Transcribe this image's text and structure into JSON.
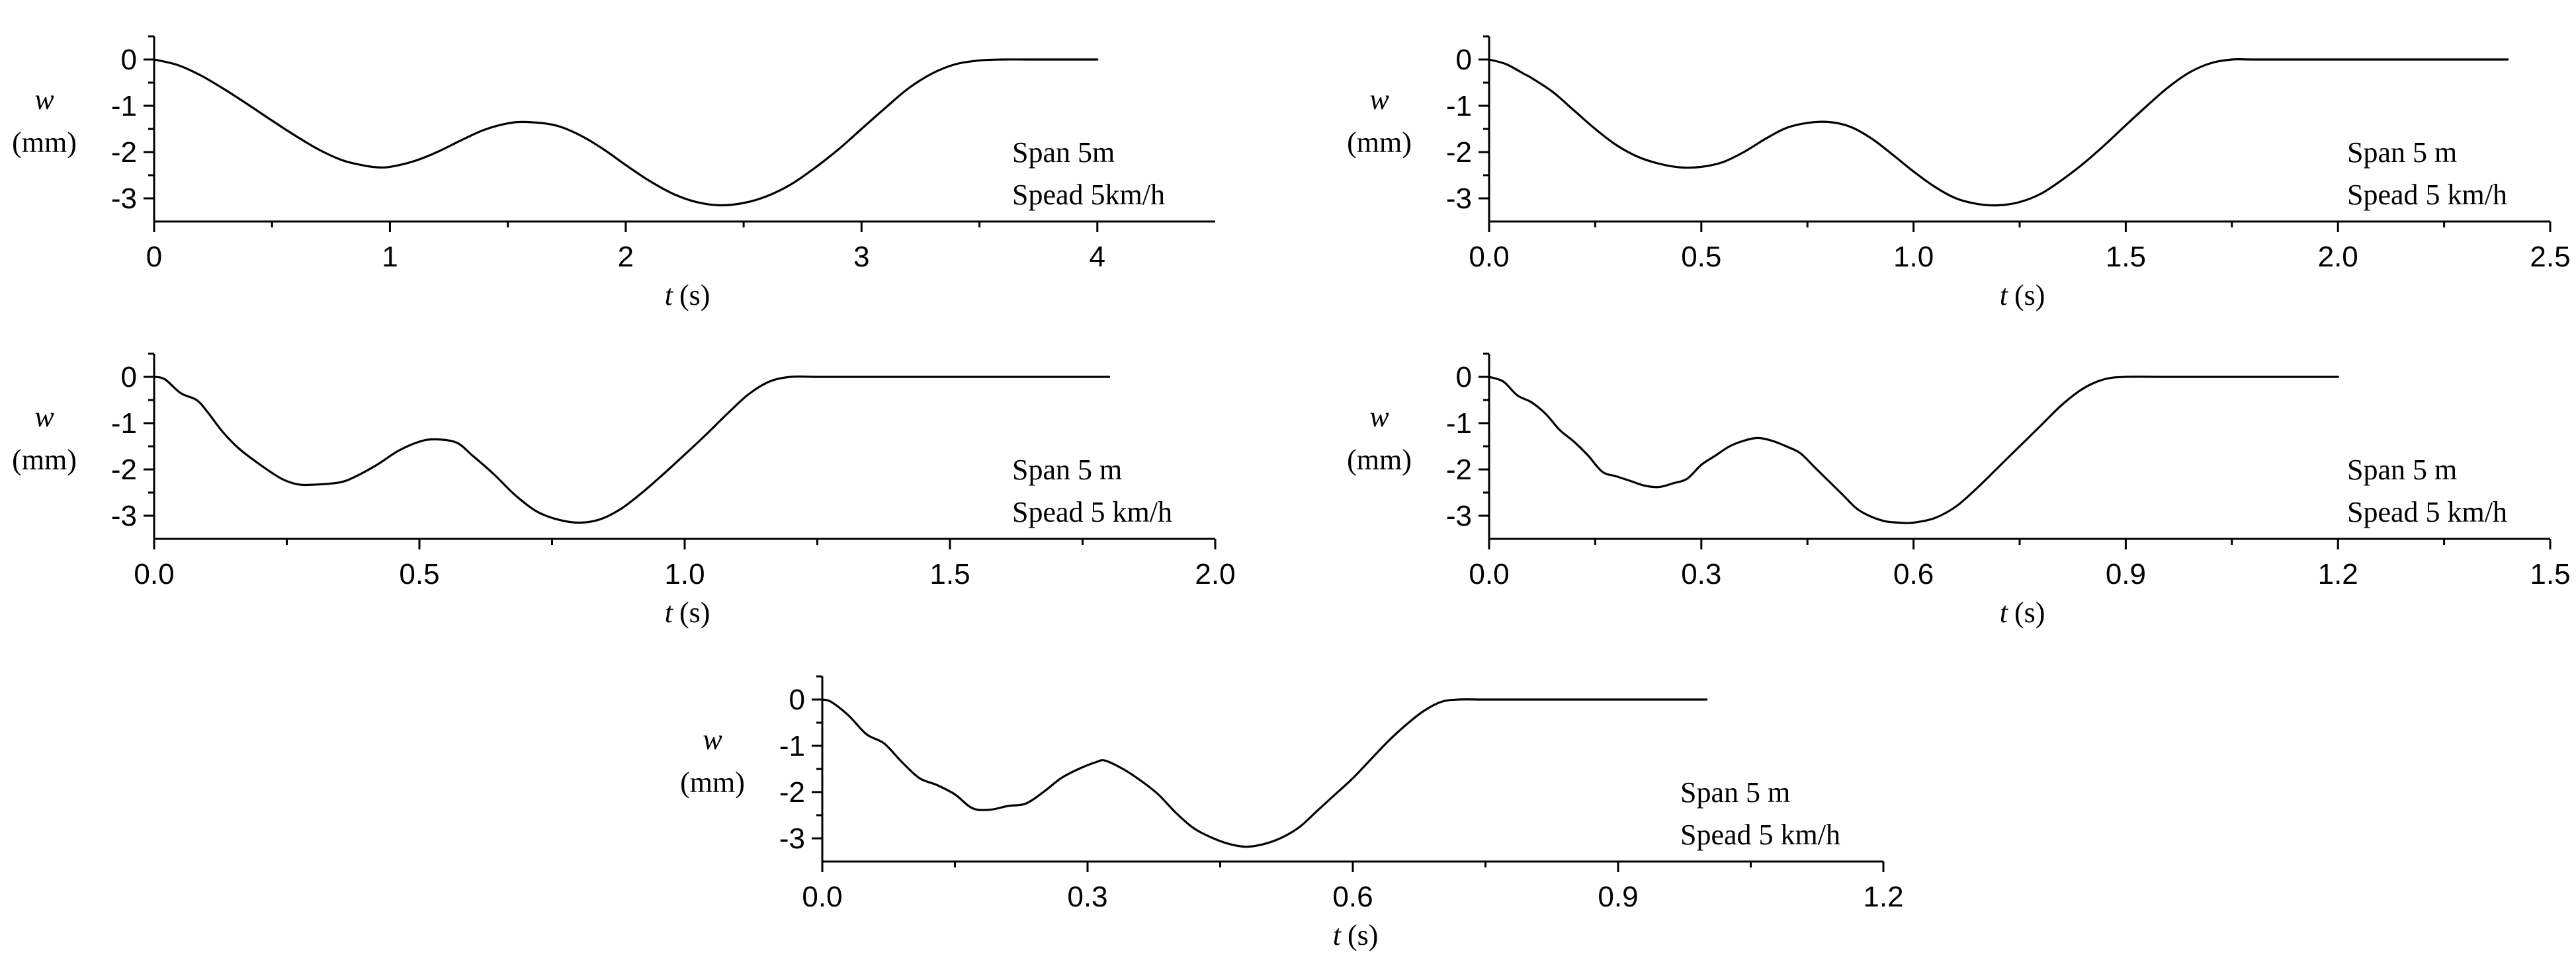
{
  "chart_data": [
    {
      "type": "line",
      "panel": "top-left",
      "xlabel_var": "t",
      "xlabel_unit": "(s)",
      "ylabel_var": "w",
      "ylabel_unit": "(mm)",
      "xlim": [
        0,
        4.5
      ],
      "ylim": [
        -3.5,
        0.5
      ],
      "xticks": [
        0,
        1,
        2,
        3,
        4
      ],
      "xtick_labels": [
        "0",
        "1",
        "2",
        "3",
        "4"
      ],
      "yticks": [
        0,
        -1,
        -2,
        -3
      ],
      "ytick_labels": [
        "0",
        "-1",
        "-2",
        "-3"
      ],
      "annotation": [
        "Span 5m",
        "Spead 5km/h"
      ],
      "series": [
        {
          "name": "w",
          "x": [
            0,
            0.1,
            0.2,
            0.3,
            0.4,
            0.5,
            0.6,
            0.7,
            0.8,
            0.9,
            0.95,
            1.0,
            1.1,
            1.2,
            1.3,
            1.4,
            1.5,
            1.58,
            1.7,
            1.8,
            1.9,
            2.0,
            2.1,
            2.2,
            2.3,
            2.4,
            2.5,
            2.6,
            2.7,
            2.8,
            2.9,
            3.0,
            3.1,
            3.2,
            3.3,
            3.4,
            3.5,
            3.6,
            3.7,
            3.8,
            3.9,
            4.0
          ],
          "y": [
            0,
            -0.12,
            -0.35,
            -0.65,
            -0.98,
            -1.32,
            -1.65,
            -1.95,
            -2.18,
            -2.3,
            -2.33,
            -2.32,
            -2.2,
            -2.0,
            -1.75,
            -1.52,
            -1.38,
            -1.35,
            -1.42,
            -1.62,
            -1.92,
            -2.28,
            -2.62,
            -2.9,
            -3.08,
            -3.15,
            -3.1,
            -2.95,
            -2.7,
            -2.35,
            -1.95,
            -1.5,
            -1.05,
            -0.62,
            -0.3,
            -0.1,
            -0.02,
            0,
            0,
            0,
            0,
            0
          ]
        }
      ]
    },
    {
      "type": "line",
      "panel": "top-right",
      "xlabel_var": "t",
      "xlabel_unit": "(s)",
      "ylabel_var": "w",
      "ylabel_unit": "(mm)",
      "xlim": [
        0,
        2.5
      ],
      "ylim": [
        -3.5,
        0.5
      ],
      "xticks": [
        0,
        0.5,
        1.0,
        1.5,
        2.0,
        2.5
      ],
      "xtick_labels": [
        "0.0",
        "0.5",
        "1.0",
        "1.5",
        "2.0",
        "2.5"
      ],
      "yticks": [
        0,
        -1,
        -2,
        -3
      ],
      "ytick_labels": [
        "0",
        "-1",
        "-2",
        "-3"
      ],
      "annotation": [
        "Span 5 m",
        "Spead 5 km/h"
      ],
      "series": [
        {
          "name": "w",
          "x": [
            0,
            0.04,
            0.08,
            0.1,
            0.15,
            0.2,
            0.25,
            0.3,
            0.35,
            0.4,
            0.45,
            0.5,
            0.55,
            0.6,
            0.65,
            0.7,
            0.75,
            0.8,
            0.85,
            0.9,
            0.95,
            1.0,
            1.05,
            1.1,
            1.15,
            1.2,
            1.25,
            1.3,
            1.35,
            1.4,
            1.45,
            1.5,
            1.55,
            1.6,
            1.65,
            1.7,
            1.75,
            1.8,
            1.9,
            2.0,
            2.1,
            2.2,
            2.3,
            2.4
          ],
          "y": [
            0,
            -0.1,
            -0.3,
            -0.4,
            -0.7,
            -1.1,
            -1.5,
            -1.85,
            -2.1,
            -2.25,
            -2.33,
            -2.32,
            -2.22,
            -2.0,
            -1.72,
            -1.48,
            -1.37,
            -1.35,
            -1.45,
            -1.7,
            -2.05,
            -2.42,
            -2.75,
            -3.0,
            -3.12,
            -3.15,
            -3.08,
            -2.9,
            -2.6,
            -2.25,
            -1.85,
            -1.42,
            -1.0,
            -0.6,
            -0.28,
            -0.08,
            0,
            0,
            0,
            0,
            0,
            0,
            0,
            0
          ]
        }
      ]
    },
    {
      "type": "line",
      "panel": "middle-left",
      "xlabel_var": "t",
      "xlabel_unit": "(s)",
      "ylabel_var": "w",
      "ylabel_unit": "(mm)",
      "xlim": [
        0,
        2.0
      ],
      "ylim": [
        -3.5,
        0.5
      ],
      "xticks": [
        0,
        0.5,
        1.0,
        1.5,
        2.0
      ],
      "xtick_labels": [
        "0.0",
        "0.5",
        "1.0",
        "1.5",
        "2.0"
      ],
      "yticks": [
        0,
        -1,
        -2,
        -3
      ],
      "ytick_labels": [
        "0",
        "-1",
        "-2",
        "-3"
      ],
      "annotation": [
        "Span 5 m",
        "Spead 5 km/h"
      ],
      "series": [
        {
          "name": "w",
          "x": [
            0,
            0.02,
            0.05,
            0.08,
            0.1,
            0.13,
            0.16,
            0.2,
            0.24,
            0.27,
            0.3,
            0.35,
            0.38,
            0.42,
            0.46,
            0.5,
            0.53,
            0.57,
            0.6,
            0.64,
            0.68,
            0.72,
            0.76,
            0.8,
            0.84,
            0.88,
            0.92,
            0.96,
            1.0,
            1.04,
            1.08,
            1.12,
            1.16,
            1.2,
            1.25,
            1.3,
            1.4,
            1.5,
            1.6,
            1.7,
            1.8
          ],
          "y": [
            0,
            -0.05,
            -0.35,
            -0.5,
            -0.75,
            -1.2,
            -1.55,
            -1.9,
            -2.2,
            -2.32,
            -2.33,
            -2.28,
            -2.15,
            -1.9,
            -1.6,
            -1.4,
            -1.35,
            -1.42,
            -1.7,
            -2.1,
            -2.55,
            -2.9,
            -3.08,
            -3.15,
            -3.08,
            -2.85,
            -2.5,
            -2.1,
            -1.68,
            -1.25,
            -0.8,
            -0.38,
            -0.1,
            0,
            0,
            0,
            0,
            0,
            0,
            0,
            0
          ]
        }
      ]
    },
    {
      "type": "line",
      "panel": "middle-right",
      "xlabel_var": "t",
      "xlabel_unit": "(s)",
      "ylabel_var": "w",
      "ylabel_unit": "(mm)",
      "xlim": [
        0,
        1.5
      ],
      "ylim": [
        -3.5,
        0.5
      ],
      "xticks": [
        0,
        0.3,
        0.6,
        0.9,
        1.2,
        1.5
      ],
      "xtick_labels": [
        "0.0",
        "0.3",
        "0.6",
        "0.9",
        "1.2",
        "1.5"
      ],
      "yticks": [
        0,
        -1,
        -2,
        -3
      ],
      "ytick_labels": [
        "0",
        "-1",
        "-2",
        "-3"
      ],
      "annotation": [
        "Span 5 m",
        "Spead 5 km/h"
      ],
      "series": [
        {
          "name": "w",
          "x": [
            0,
            0.02,
            0.04,
            0.06,
            0.08,
            0.1,
            0.12,
            0.14,
            0.16,
            0.18,
            0.2,
            0.22,
            0.24,
            0.26,
            0.28,
            0.3,
            0.32,
            0.34,
            0.36,
            0.38,
            0.4,
            0.42,
            0.44,
            0.46,
            0.48,
            0.5,
            0.52,
            0.54,
            0.56,
            0.58,
            0.6,
            0.63,
            0.66,
            0.69,
            0.72,
            0.75,
            0.78,
            0.81,
            0.84,
            0.87,
            0.9,
            0.95,
            1.0,
            1.1,
            1.2
          ],
          "y": [
            0,
            -0.1,
            -0.4,
            -0.55,
            -0.8,
            -1.15,
            -1.4,
            -1.7,
            -2.05,
            -2.15,
            -2.25,
            -2.35,
            -2.38,
            -2.3,
            -2.2,
            -1.9,
            -1.7,
            -1.5,
            -1.38,
            -1.32,
            -1.38,
            -1.5,
            -1.65,
            -1.95,
            -2.25,
            -2.55,
            -2.85,
            -3.02,
            -3.12,
            -3.15,
            -3.15,
            -3.05,
            -2.8,
            -2.4,
            -1.95,
            -1.5,
            -1.05,
            -0.6,
            -0.25,
            -0.05,
            0,
            0,
            0,
            0,
            0
          ]
        }
      ]
    },
    {
      "type": "line",
      "panel": "bottom-center",
      "xlabel_var": "t",
      "xlabel_unit": "(s)",
      "ylabel_var": "w",
      "ylabel_unit": "(mm)",
      "xlim": [
        0,
        1.2
      ],
      "ylim": [
        -3.5,
        0.5
      ],
      "xticks": [
        0,
        0.3,
        0.6,
        0.9,
        1.2
      ],
      "xtick_labels": [
        "0.0",
        "0.3",
        "0.6",
        "0.9",
        "1.2"
      ],
      "yticks": [
        0,
        -1,
        -2,
        -3
      ],
      "ytick_labels": [
        "0",
        "-1",
        "-2",
        "-3"
      ],
      "annotation": [
        "Span 5 m",
        "Spead 5 km/h"
      ],
      "series": [
        {
          "name": "w",
          "x": [
            0,
            0.01,
            0.03,
            0.05,
            0.07,
            0.09,
            0.11,
            0.13,
            0.15,
            0.17,
            0.19,
            0.21,
            0.23,
            0.25,
            0.27,
            0.29,
            0.31,
            0.32,
            0.34,
            0.36,
            0.38,
            0.4,
            0.42,
            0.44,
            0.46,
            0.48,
            0.5,
            0.52,
            0.54,
            0.56,
            0.58,
            0.6,
            0.62,
            0.64,
            0.66,
            0.68,
            0.7,
            0.72,
            0.75,
            0.8,
            0.9,
            1.0
          ],
          "y": [
            0,
            -0.05,
            -0.35,
            -0.75,
            -0.95,
            -1.35,
            -1.7,
            -1.85,
            -2.05,
            -2.35,
            -2.38,
            -2.3,
            -2.25,
            -2.0,
            -1.7,
            -1.5,
            -1.35,
            -1.32,
            -1.5,
            -1.75,
            -2.05,
            -2.45,
            -2.78,
            -2.98,
            -3.12,
            -3.18,
            -3.12,
            -2.98,
            -2.75,
            -2.4,
            -2.05,
            -1.7,
            -1.3,
            -0.9,
            -0.55,
            -0.25,
            -0.05,
            0,
            0,
            0,
            0,
            0
          ]
        }
      ]
    }
  ]
}
